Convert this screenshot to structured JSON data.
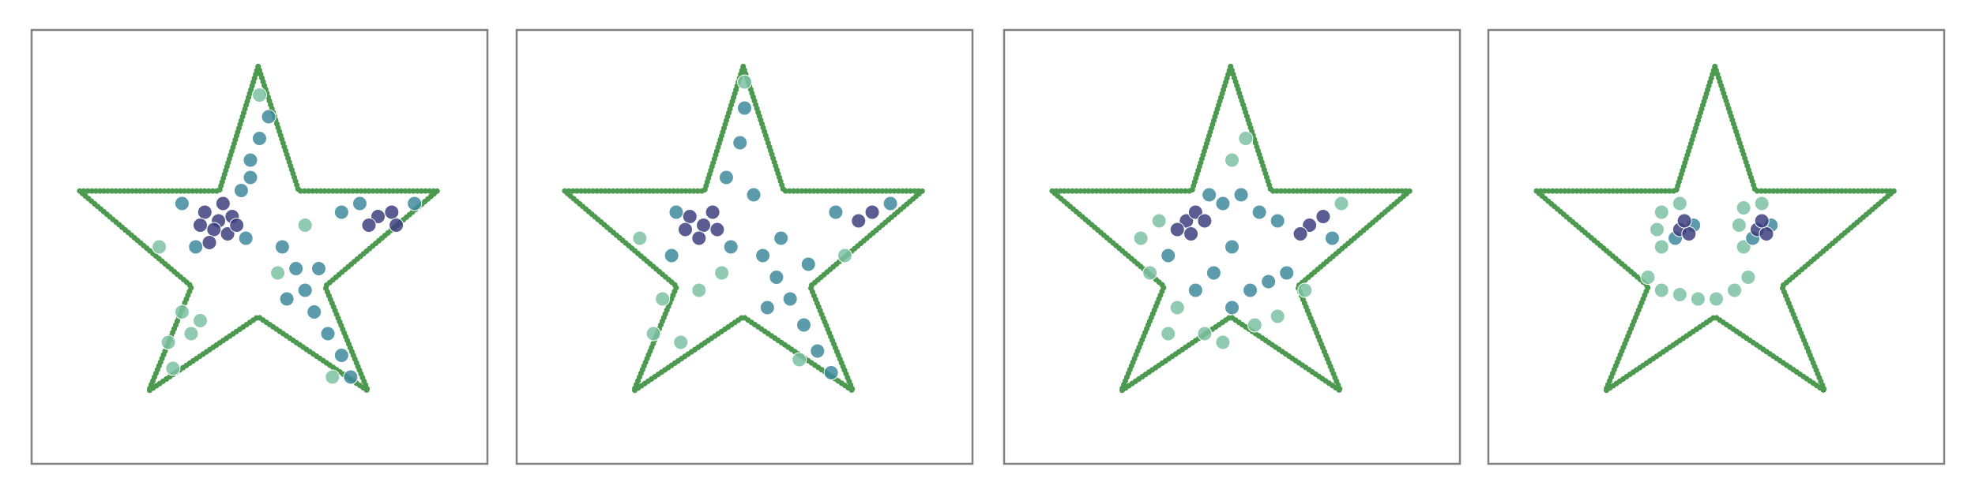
{
  "chart_data": [
    {
      "type": "scatter",
      "xlim": [
        0,
        100
      ],
      "ylim": [
        0,
        100
      ],
      "outline": {
        "color": "#4c9a50",
        "x": [
          49.7,
          58.6,
          89.0,
          64.4,
          73.8,
          49.7,
          25.7,
          35.1,
          10.5,
          41.2,
          49.7
        ],
        "values": [
          91.6,
          62.9,
          62.9,
          40.9,
          16.8,
          33.9,
          16.8,
          40.9,
          62.9,
          62.9,
          91.6
        ]
      },
      "series": [
        {
          "color": "#7cc1a2",
          "x": [
            33,
            35,
            30,
            37,
            31,
            50,
            28,
            60,
            66,
            54
          ],
          "values": [
            35,
            30,
            28,
            33,
            22,
            85,
            50,
            55,
            20,
            44
          ]
        },
        {
          "color": "#3f8a9c",
          "x": [
            46,
            48,
            50,
            47,
            55,
            58,
            60,
            62,
            65,
            68,
            70,
            56,
            63,
            72,
            84,
            68,
            33,
            36,
            48,
            52
          ],
          "values": [
            63,
            70,
            75,
            52,
            50,
            45,
            40,
            35,
            30,
            25,
            20,
            38,
            45,
            60,
            60,
            58,
            60,
            50,
            66,
            80
          ]
        },
        {
          "color": "#3d3f7f",
          "x": [
            38,
            41,
            44,
            40,
            43,
            37,
            42,
            45,
            39,
            76,
            79,
            74,
            80
          ],
          "values": [
            58,
            56,
            57,
            54,
            53,
            55,
            60,
            55,
            51,
            57,
            58,
            55,
            55
          ]
        }
      ]
    },
    {
      "type": "scatter",
      "xlim": [
        0,
        100
      ],
      "ylim": [
        0,
        100
      ],
      "outline": {
        "color": "#4c9a50",
        "x": [
          49.7,
          58.6,
          89.0,
          64.4,
          73.8,
          49.7,
          25.7,
          35.1,
          10.5,
          41.2,
          49.7
        ],
        "values": [
          91.6,
          62.9,
          62.9,
          40.9,
          16.8,
          33.9,
          16.8,
          40.9,
          62.9,
          62.9,
          91.6
        ]
      },
      "series": [
        {
          "color": "#7cc1a2",
          "x": [
            32,
            30,
            36,
            40,
            27,
            62,
            50,
            72,
            45
          ],
          "values": [
            38,
            30,
            28,
            40,
            52,
            24,
            88,
            48,
            44
          ]
        },
        {
          "color": "#3f8a9c",
          "x": [
            46,
            49,
            50,
            47,
            54,
            57,
            60,
            63,
            66,
            69,
            55,
            64,
            70,
            82,
            35,
            34,
            52,
            58
          ],
          "values": [
            66,
            74,
            82,
            50,
            48,
            43,
            38,
            32,
            26,
            21,
            36,
            46,
            58,
            60,
            58,
            48,
            62,
            52
          ]
        },
        {
          "color": "#3d3f7f",
          "x": [
            38,
            41,
            43,
            40,
            44,
            37,
            75,
            78
          ],
          "values": [
            57,
            55,
            58,
            52,
            54,
            54,
            56,
            58
          ]
        }
      ]
    },
    {
      "type": "scatter",
      "xlim": [
        0,
        100
      ],
      "ylim": [
        0,
        100
      ],
      "outline": {
        "color": "#4c9a50",
        "x": [
          49.7,
          58.6,
          89.0,
          64.4,
          73.8,
          49.7,
          25.7,
          35.1,
          10.5,
          41.2,
          49.7
        ],
        "values": [
          91.6,
          62.9,
          62.9,
          40.9,
          16.8,
          33.9,
          16.8,
          40.9,
          62.9,
          62.9,
          91.6
        ]
      },
      "series": [
        {
          "color": "#7cc1a2",
          "x": [
            34,
            32,
            38,
            36,
            44,
            55,
            60,
            50,
            53,
            74,
            66,
            30,
            48
          ],
          "values": [
            56,
            44,
            36,
            30,
            30,
            32,
            34,
            70,
            75,
            60,
            40,
            52,
            28
          ]
        },
        {
          "color": "#3f8a9c",
          "x": [
            48,
            52,
            56,
            60,
            50,
            46,
            54,
            58,
            62,
            50,
            42,
            45,
            72,
            36
          ],
          "values": [
            60,
            62,
            58,
            56,
            50,
            44,
            40,
            42,
            44,
            36,
            40,
            62,
            52,
            48
          ]
        },
        {
          "color": "#3d3f7f",
          "x": [
            40,
            42,
            38,
            41,
            44,
            67,
            70,
            65
          ],
          "values": [
            56,
            58,
            54,
            53,
            56,
            55,
            57,
            53
          ]
        }
      ]
    },
    {
      "type": "scatter",
      "xlim": [
        0,
        100
      ],
      "ylim": [
        0,
        100
      ],
      "outline": {
        "color": "#4c9a50",
        "x": [
          49.7,
          58.6,
          89.0,
          64.4,
          73.8,
          49.7,
          25.7,
          35.1,
          10.5,
          41.2,
          49.7
        ],
        "values": [
          91.6,
          62.9,
          62.9,
          40.9,
          16.8,
          33.9,
          16.8,
          40.9,
          62.9,
          62.9,
          91.6
        ]
      },
      "series": [
        {
          "color": "#7cc1a2",
          "x": [
            37,
            38,
            42,
            38,
            55,
            56,
            60,
            56,
            35,
            38,
            42,
            46,
            50,
            54,
            57
          ],
          "values": [
            54,
            58,
            60,
            50,
            55,
            59,
            60,
            50,
            43,
            40,
            39,
            38,
            38,
            40,
            43
          ]
        },
        {
          "color": "#3f8a9c",
          "x": [
            41,
            45,
            58,
            62
          ],
          "values": [
            52,
            55,
            52,
            55
          ]
        },
        {
          "color": "#3d3f7f",
          "x": [
            42,
            44,
            43,
            59,
            61,
            60
          ],
          "values": [
            54,
            53,
            56,
            54,
            53,
            56
          ]
        }
      ]
    }
  ]
}
